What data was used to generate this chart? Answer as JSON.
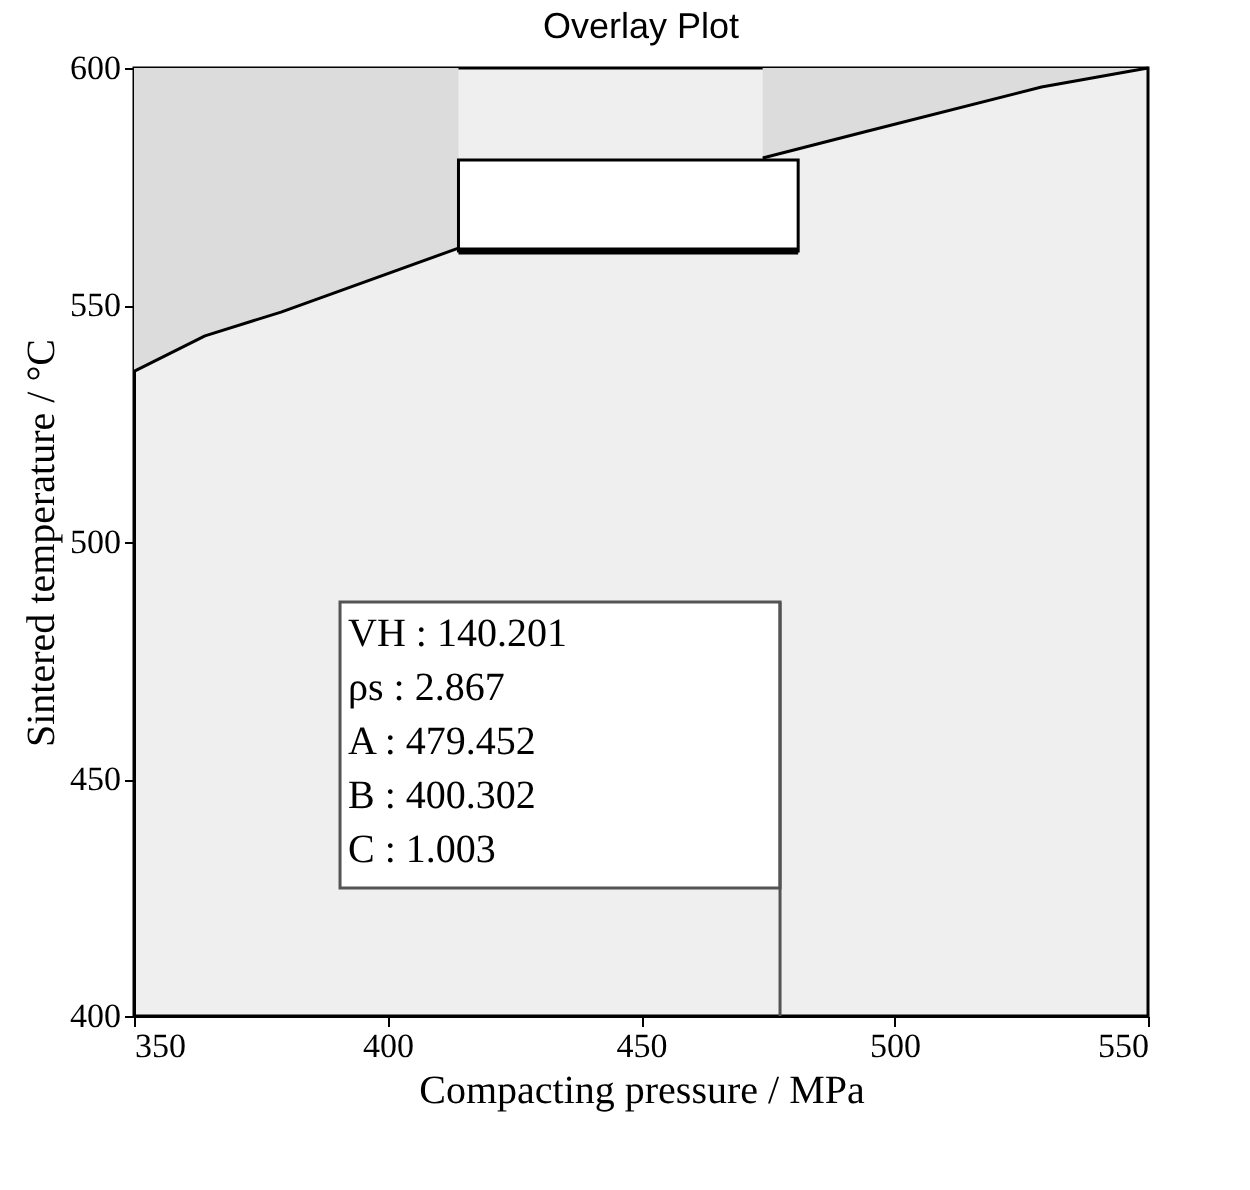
{
  "chart_data": {
    "type": "line",
    "title": "Overlay Plot",
    "xlabel": "Compacting pressure / MPa",
    "ylabel": "Sintered temperature / °C",
    "xlim": [
      350,
      550
    ],
    "xticks": [
      350,
      400,
      450,
      500,
      550
    ],
    "ylim": [
      400,
      600
    ],
    "yticks": [
      400,
      450,
      500,
      550,
      600
    ],
    "grid": false,
    "marker": "none",
    "line_style": "solid",
    "series": [
      {
        "type": "line",
        "color": "#000000",
        "x": [
          350,
          364,
          379,
          414,
          444,
          474,
          494,
          529,
          550
        ],
        "values": [
          536,
          543.5,
          548.5,
          562,
          null,
          581,
          586.5,
          596,
          600
        ],
        "lower": [
          536,
          543.5,
          548.5,
          562,
          null,
          581,
          586.5,
          596,
          600
        ],
        "upper": [
          600,
          600,
          600,
          600,
          null,
          600,
          600,
          600,
          600
        ]
      },
      {
        "type": "line",
        "color": "#000000",
        "x": [
          414,
          481
        ],
        "values": [
          561.4,
          561.4
        ],
        "lower": [
          561.4,
          561.4
        ],
        "upper": [
          580.6,
          580.6
        ]
      }
    ],
    "annotations": [
      "VH : 140.201\nρs  : 2.867\nA   : 479.452\nB   : 400.302\nC   : 1.003"
    ]
  }
}
